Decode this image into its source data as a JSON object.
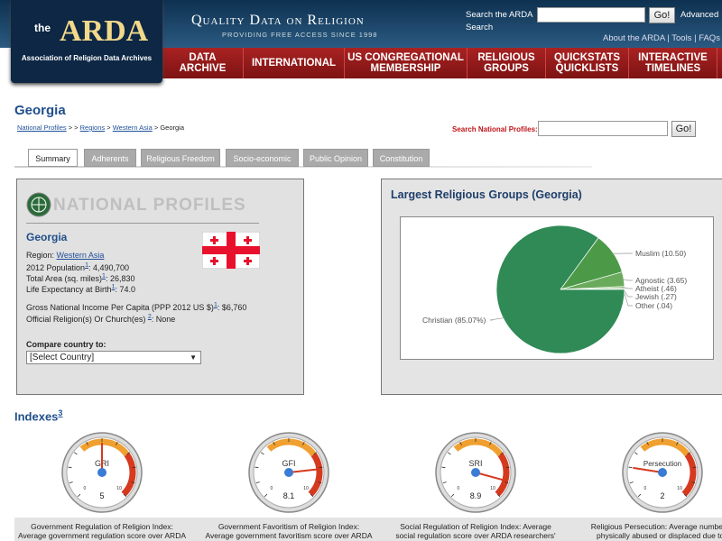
{
  "header": {
    "logo_small": "the",
    "logo": "ARDA",
    "logo_sub": "Association of Religion Data Archives",
    "tagline": "Quality Data on Religion",
    "tagline_sub": "Providing Free Access Since 1998",
    "search_label": "Search the ARDA",
    "search_button": "Go!",
    "advanced": "Advanced",
    "search_link": "Search",
    "links": [
      "About the ARDA",
      "|",
      "Tools",
      "|",
      "FAQs"
    ]
  },
  "nav": [
    [
      "DATA",
      "ARCHIVE"
    ],
    [
      "INTERNATIONAL"
    ],
    [
      "US CONGREGATIONAL",
      "MEMBERSHIP"
    ],
    [
      "RELIGIOUS",
      "GROUPS"
    ],
    [
      "QUICKSTATS",
      "QUICKLISTS"
    ],
    [
      "INTERACTIVE",
      "TIMELINES"
    ]
  ],
  "page": {
    "title": "Georgia",
    "breadcrumb": [
      "National Profiles",
      " > > ",
      "Regions",
      " > ",
      "Western Asia",
      " > Georgia"
    ],
    "search_label": "Search National Profiles:",
    "search_button": "Go!"
  },
  "tabs": [
    "Summary",
    "Adherents",
    "Religious Freedom",
    "Socio-economic",
    "Public Opinion",
    "Constitution"
  ],
  "profile": {
    "banner": "NATIONAL PROFILES",
    "name": "Georgia",
    "rows": [
      {
        "label": "Region: ",
        "value": "Western Asia"
      },
      {
        "label": "2012 Population",
        "note": "1",
        "value": ": 4,490,700"
      },
      {
        "label": "Total Area (sq. miles)",
        "note": "1",
        "value": ": 26,830"
      },
      {
        "label": "Life Expectancy at Birth",
        "note": "1",
        "value": ": 74.0"
      },
      {
        "label": "Gross National Income Per Capita (PPP 2012 US $)",
        "note": "1",
        "value": ": $6,760"
      },
      {
        "label": "Official Religion(s) Or Church(es) ",
        "note": "2",
        "value": ": None"
      }
    ],
    "compare_label": "Compare country to:",
    "compare_select": "[Select Country]"
  },
  "religious_groups": {
    "title": "Largest Religious Groups (Georgia)",
    "slices": [
      {
        "name": "Christian",
        "value": 85.07,
        "label": "Christian (85.07%)",
        "color": "#2f8a55"
      },
      {
        "name": "Muslim",
        "value": 10.5,
        "label": "Muslim (10.50)",
        "color": "#4c9a48"
      },
      {
        "name": "Agnostic",
        "value": 3.65,
        "label": "Agnostic (3.65)",
        "color": "#6aaa5c"
      },
      {
        "name": "Atheist",
        "value": 0.46,
        "label": "Atheist (.46)",
        "color": "#8cbf7c"
      },
      {
        "name": "Jewish",
        "value": 0.27,
        "label": "Jewish (.27)",
        "color": "#a6cf96"
      },
      {
        "name": "Other",
        "value": 0.04,
        "label": "Other (.04)",
        "color": "#c2dfb4"
      }
    ]
  },
  "indexes": {
    "title": "Indexes",
    "note": "3",
    "scale": [
      0,
      10
    ],
    "gauges": [
      {
        "abbr": "GRI",
        "value": 5,
        "caption": [
          "Government Regulation of Religion Index:",
          "Average government regulation score over ARDA"
        ]
      },
      {
        "abbr": "GFI",
        "value": 8.1,
        "caption": [
          "Government Favoritism of Religion Index:",
          "Average government favoritism score over ARDA"
        ]
      },
      {
        "abbr": "SRI",
        "value": 8.9,
        "caption": [
          "Social Regulation of Religion Index: Average",
          "social regulation score over ARDA researchers'"
        ]
      },
      {
        "abbr": "Persecution",
        "value": 2,
        "caption": [
          "Religious Persecution: Average number of",
          "physically abused or displaced due to t"
        ]
      }
    ]
  }
}
